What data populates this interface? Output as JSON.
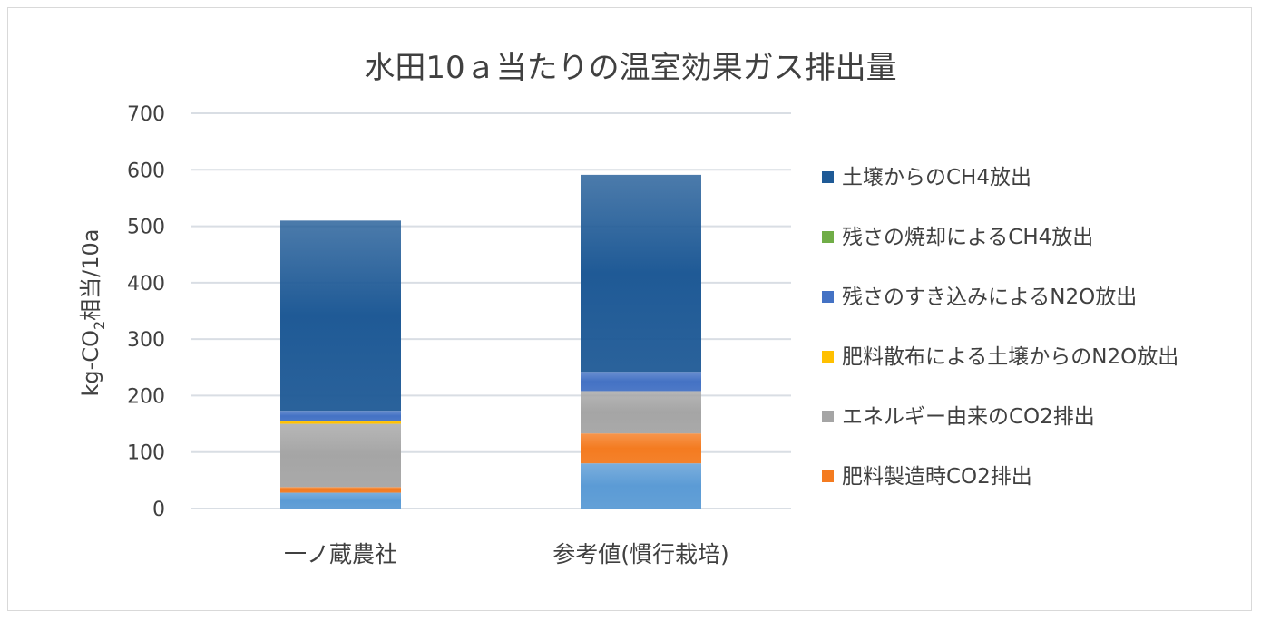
{
  "chart_data": {
    "type": "bar",
    "stacked": true,
    "title": "水田10ａ当たりの温室効果ガス排出量",
    "ylabel": "kg-CO₂相当/10a",
    "ylabel_parts": {
      "pre": "kg-CO",
      "sub": "2",
      "post": "相当/10a"
    },
    "xlabel": "",
    "ylim": [
      0,
      700
    ],
    "yticks": [
      0,
      100,
      200,
      300,
      400,
      500,
      600,
      700
    ],
    "grid": true,
    "legend_position": "right",
    "categories": [
      "一ノ蔵農社",
      "参考値(慣行栽培)"
    ],
    "series": [
      {
        "values": [
          28,
          80
        ],
        "color": "#5b9bd5"
      },
      {
        "name": "肥料製造時CO2排出",
        "values": [
          10,
          53
        ],
        "color": "#f47b20"
      },
      {
        "name": "エネルギー由来のCO2排出",
        "values": [
          112,
          75
        ],
        "color": "#a5a5a5"
      },
      {
        "name": "肥料散布による土壌からのN2O放出",
        "values": [
          5,
          0
        ],
        "color": "#ffc000"
      },
      {
        "name": "残さのすき込みによるN2O放出",
        "values": [
          18,
          34
        ],
        "color": "#4472c4"
      },
      {
        "name": "残さの焼却によるCH4放出",
        "values": [
          0,
          0
        ],
        "color": "#70ad47"
      },
      {
        "name": "土壌からのCH4放出",
        "values": [
          337,
          349
        ],
        "color": "#1f5a96"
      }
    ]
  }
}
